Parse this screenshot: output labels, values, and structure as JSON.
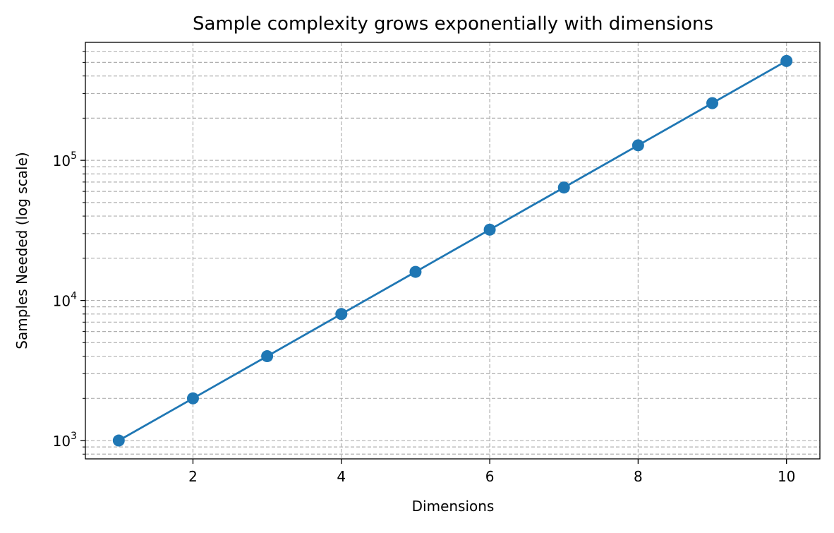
{
  "chart_data": {
    "type": "line",
    "title": "Sample complexity grows exponentially with dimensions",
    "xlabel": "Dimensions",
    "ylabel": "Samples Needed (log scale)",
    "x": [
      1,
      2,
      3,
      4,
      5,
      6,
      7,
      8,
      9,
      10
    ],
    "series": [
      {
        "name": "",
        "values": [
          1000,
          2000,
          4000,
          8000,
          16000,
          32000,
          64000,
          128000,
          256000,
          512000
        ]
      }
    ],
    "xlim": [
      0.55,
      10.45
    ],
    "ylim": [
      740,
      695000
    ],
    "yscale": "log",
    "x_ticks": [
      {
        "value": 2,
        "label": "2"
      },
      {
        "value": 4,
        "label": "4"
      },
      {
        "value": 6,
        "label": "6"
      },
      {
        "value": 8,
        "label": "8"
      },
      {
        "value": 10,
        "label": "10"
      }
    ],
    "y_major_ticks": [
      {
        "value": 1000,
        "base": "10",
        "exp": "3"
      },
      {
        "value": 10000,
        "base": "10",
        "exp": "4"
      },
      {
        "value": 100000,
        "base": "10",
        "exp": "5"
      }
    ],
    "grid": true,
    "grid_style": "dashed",
    "legend": "none",
    "colors": {
      "line": "#1f77b4",
      "marker": "#1f77b4",
      "grid": "#b0b0b0",
      "axes": "#000000"
    }
  }
}
